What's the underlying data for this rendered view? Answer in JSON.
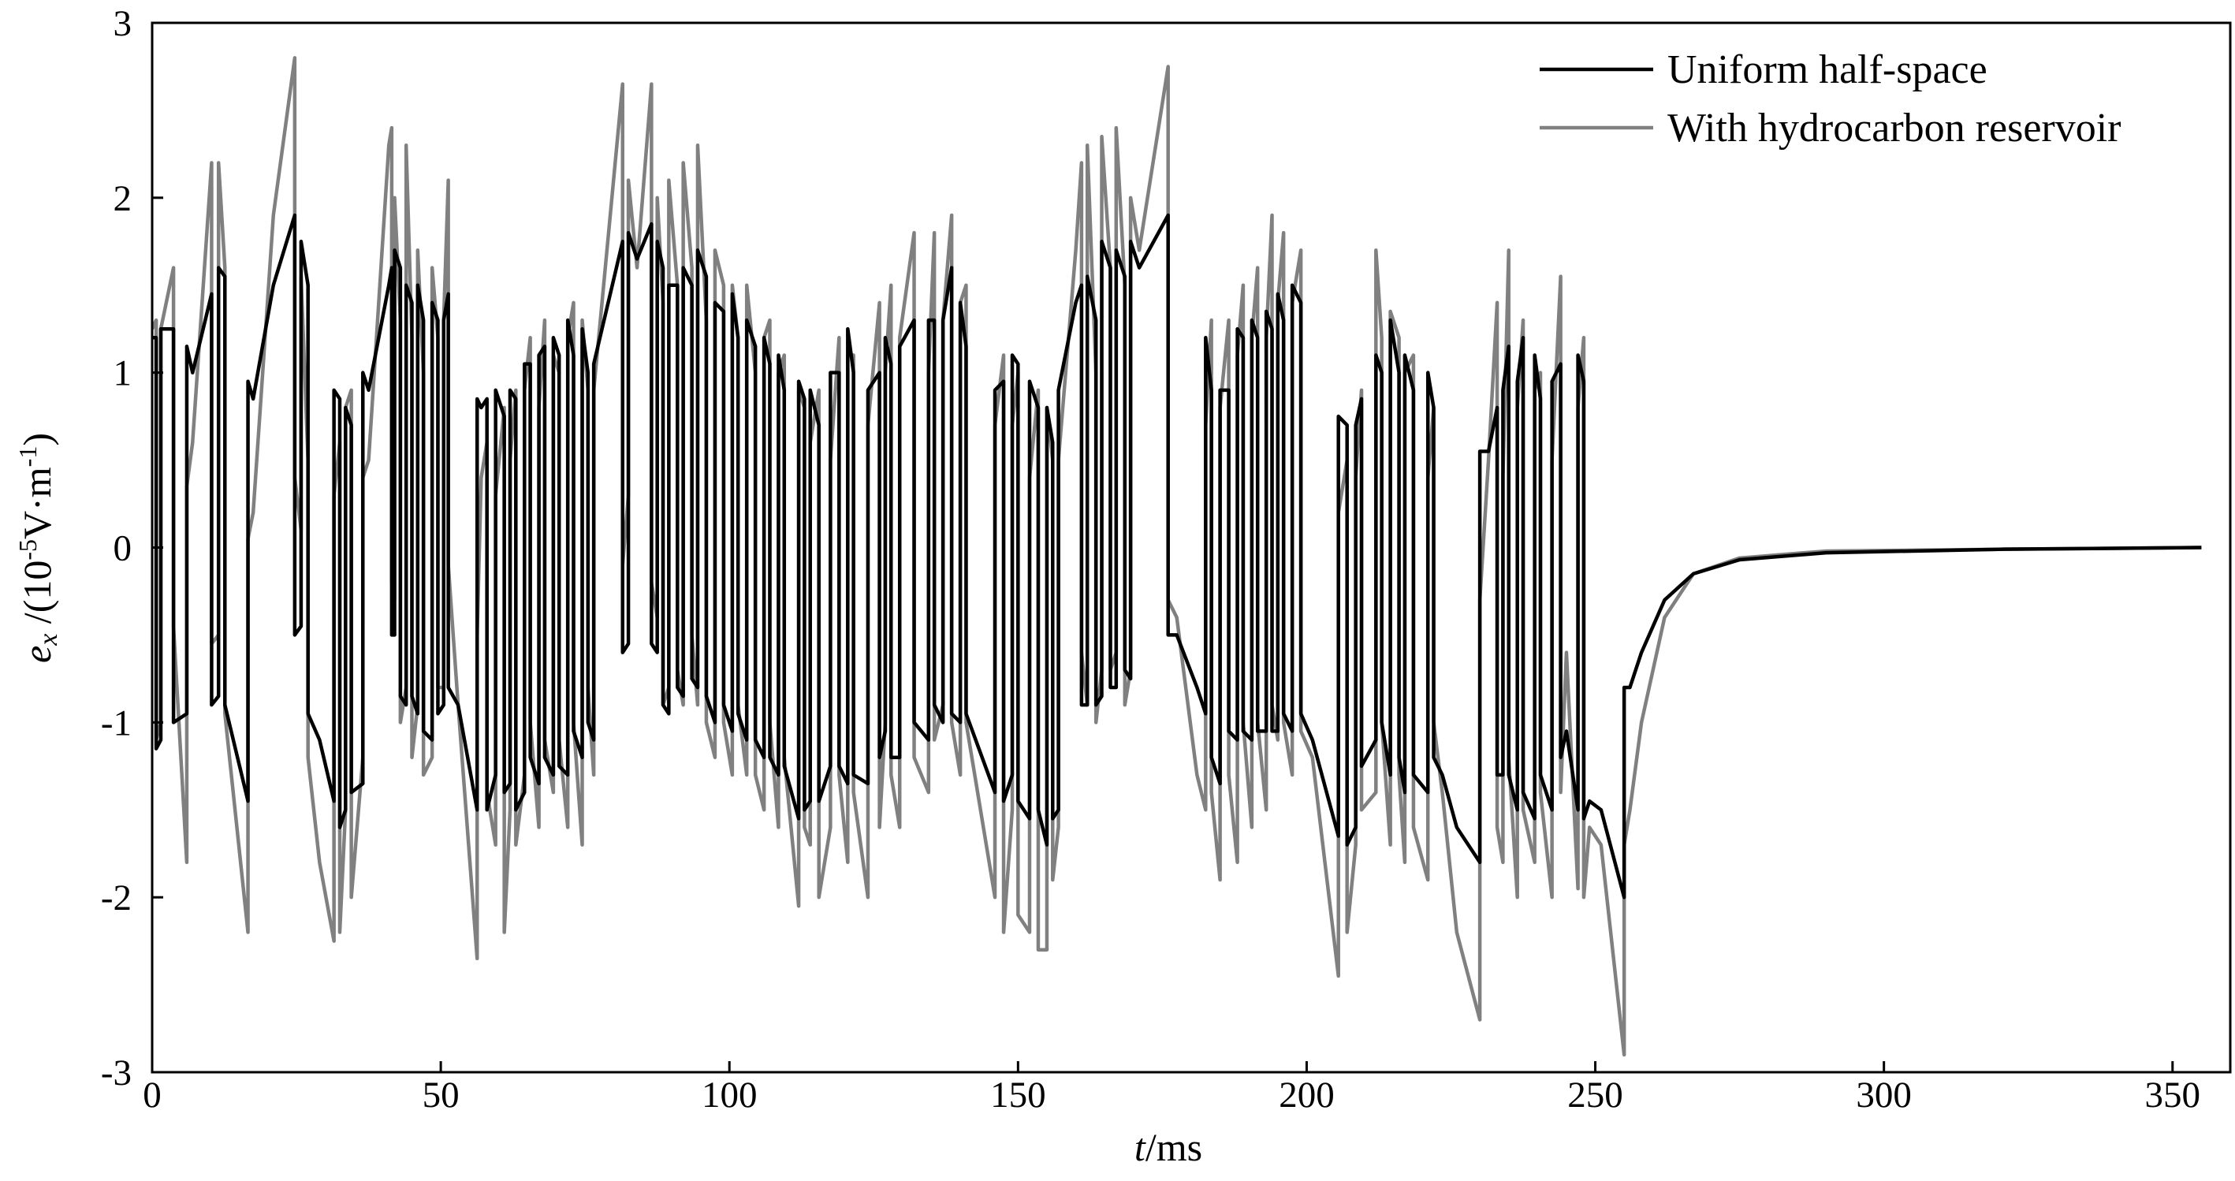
{
  "chart_data": {
    "type": "line",
    "x_label": {
      "symbol": "t",
      "unit": "/ms"
    },
    "y_label": {
      "symbol": "e",
      "subscript": "x",
      "prefix": " /(10",
      "exponent": "-5",
      "unit": "V·m",
      "unit_exponent": "-1",
      "suffix": ")"
    },
    "xlim": [
      0,
      360
    ],
    "ylim": [
      -3,
      3
    ],
    "xticks": [
      0,
      50,
      100,
      150,
      200,
      250,
      300,
      350
    ],
    "yticks": [
      -3,
      -2,
      -1,
      0,
      1,
      2,
      3
    ],
    "legend": "upper right",
    "x": [
      0,
      0.7,
      0.7,
      1.5,
      1.5,
      3.7,
      3.7,
      6,
      6,
      7,
      10.3,
      10.3,
      11.5,
      11.5,
      12.6,
      12.6,
      16.6,
      16.6,
      17.5,
      21,
      24.7,
      24.7,
      25.8,
      25.8,
      27,
      27,
      29,
      31.5,
      31.5,
      32.5,
      32.5,
      33.5,
      33.5,
      34.5,
      34.5,
      36.5,
      36.5,
      37.5,
      41,
      41.5,
      41.5,
      42,
      42,
      43,
      43,
      44,
      44,
      45,
      45,
      46,
      46,
      47,
      47,
      48.5,
      48.5,
      49.5,
      49.5,
      50.5,
      50.5,
      51.3,
      51.3,
      53,
      56.3,
      56.3,
      57,
      58,
      58,
      59.5,
      59.5,
      61,
      61,
      62,
      62,
      63,
      63,
      64.5,
      64.5,
      65.5,
      65.5,
      67,
      67,
      68,
      68,
      69.5,
      69.5,
      70.5,
      70.5,
      72,
      72,
      73,
      73,
      74.5,
      74.5,
      75.5,
      75.5,
      76.5,
      76.5,
      81.5,
      81.5,
      82.5,
      82.5,
      84,
      86.5,
      86.5,
      87.5,
      87.5,
      88.5,
      88.5,
      89.5,
      89.5,
      91,
      91,
      92,
      92,
      93.5,
      93.5,
      94.5,
      94.5,
      96,
      96,
      97.5,
      97.5,
      99,
      99,
      100.5,
      100.5,
      101.5,
      101.5,
      103,
      103,
      104.5,
      104.5,
      106,
      106,
      107,
      107,
      108.5,
      108.5,
      109.5,
      109.5,
      112,
      112,
      113,
      113,
      114,
      114,
      115.5,
      115.5,
      117.5,
      117.5,
      119,
      119,
      120.5,
      120.5,
      121.5,
      121.5,
      124,
      124,
      126,
      126,
      127,
      127,
      128,
      128,
      129.5,
      129.5,
      132,
      132,
      134.5,
      134.5,
      135.5,
      135.5,
      137,
      137,
      138.5,
      138.5,
      140,
      140,
      141,
      141,
      146,
      146,
      147.5,
      147.5,
      149,
      149,
      150,
      150,
      152,
      152,
      153.5,
      153.5,
      155,
      155,
      156,
      156,
      157,
      157,
      160,
      161,
      161,
      162,
      162,
      163.5,
      163.5,
      164.5,
      164.5,
      166,
      166,
      167,
      167,
      168.5,
      168.5,
      169.5,
      169.5,
      171,
      176,
      176,
      177.5,
      181,
      182.5,
      182.5,
      183.5,
      183.5,
      185,
      185,
      186.5,
      186.5,
      188,
      188,
      189,
      189,
      190.5,
      190.5,
      191.5,
      191.5,
      193,
      193,
      194,
      194,
      195,
      195,
      196,
      196,
      197.5,
      197.5,
      199,
      199,
      201,
      205.5,
      205.5,
      207,
      207,
      208.5,
      208.5,
      209.5,
      209.5,
      212,
      212,
      213,
      213,
      214.5,
      214.5,
      216,
      216,
      217,
      217,
      218.5,
      218.5,
      221,
      221,
      222,
      222,
      223.5,
      226,
      230,
      230,
      231.5,
      233,
      233,
      234,
      234,
      235,
      235,
      236.5,
      236.5,
      237.5,
      237.5,
      239.5,
      239.5,
      240.5,
      240.5,
      242.5,
      242.5,
      244,
      244,
      245,
      247,
      247,
      248,
      248,
      249,
      251,
      255,
      255,
      256,
      258,
      262,
      267,
      275,
      290,
      320,
      355
    ],
    "series": [
      {
        "name": "Uniform half-space",
        "color": "#000000",
        "width": 4.5,
        "values": [
          1.2,
          1.2,
          -1.15,
          -1.1,
          1.25,
          1.25,
          -1.0,
          -0.95,
          1.15,
          1.0,
          1.45,
          -0.9,
          -0.85,
          1.6,
          1.55,
          -0.9,
          -1.45,
          0.95,
          0.85,
          1.5,
          1.9,
          -0.5,
          -0.45,
          1.75,
          1.5,
          -0.95,
          -1.1,
          -1.45,
          0.9,
          0.85,
          -1.6,
          -1.5,
          0.8,
          0.7,
          -1.4,
          -1.35,
          1.0,
          0.9,
          1.5,
          1.6,
          -0.5,
          -0.5,
          1.7,
          1.6,
          -0.85,
          -0.9,
          1.5,
          1.4,
          -0.85,
          -0.95,
          1.5,
          1.3,
          -1.05,
          -1.1,
          1.4,
          1.3,
          -0.95,
          -0.9,
          1.3,
          1.45,
          -0.8,
          -0.9,
          -1.5,
          0.85,
          0.8,
          0.85,
          -1.5,
          -1.3,
          0.9,
          0.75,
          -1.4,
          -1.35,
          0.9,
          0.85,
          -1.5,
          -1.4,
          1.05,
          1.05,
          -1.2,
          -1.35,
          1.1,
          1.15,
          -1.2,
          -1.3,
          1.2,
          1.1,
          -1.25,
          -1.3,
          1.3,
          1.1,
          -1.05,
          -1.2,
          1.25,
          1.0,
          -1.0,
          -1.1,
          1.05,
          1.75,
          -0.6,
          -0.55,
          1.8,
          1.65,
          1.85,
          -0.55,
          -0.6,
          1.75,
          1.6,
          -0.9,
          -0.95,
          1.5,
          1.5,
          -0.8,
          -0.85,
          1.6,
          1.5,
          -0.75,
          -0.8,
          1.7,
          1.55,
          -0.85,
          -1.0,
          1.4,
          1.35,
          -0.9,
          -1.05,
          1.45,
          1.2,
          -0.95,
          -1.1,
          1.3,
          1.15,
          -1.1,
          -1.2,
          1.2,
          1.05,
          -1.2,
          -1.3,
          1.1,
          0.9,
          -1.25,
          -1.55,
          0.95,
          0.85,
          -1.5,
          -1.45,
          0.9,
          0.7,
          -1.45,
          -1.25,
          1.0,
          1.0,
          -1.25,
          -1.35,
          1.25,
          1.0,
          -1.3,
          -1.35,
          0.9,
          1.0,
          -1.2,
          -1.05,
          1.2,
          1.05,
          -1.2,
          -1.2,
          1.15,
          1.3,
          -1.0,
          -1.1,
          1.3,
          1.3,
          -0.9,
          -1.0,
          1.3,
          1.6,
          -0.95,
          -1.0,
          1.4,
          1.15,
          -0.95,
          -1.4,
          0.9,
          0.95,
          -1.45,
          -1.3,
          1.1,
          1.05,
          -1.45,
          -1.55,
          0.95,
          0.8,
          -1.5,
          -1.7,
          0.8,
          0.6,
          -1.55,
          -1.5,
          0.9,
          1.4,
          1.5,
          -0.9,
          -0.9,
          1.55,
          1.3,
          -0.9,
          -0.85,
          1.75,
          1.6,
          -0.8,
          -0.8,
          1.7,
          1.55,
          -0.7,
          -0.75,
          1.75,
          1.6,
          1.9,
          -0.5,
          -0.5,
          -0.8,
          -0.95,
          1.2,
          0.9,
          -1.2,
          -1.35,
          0.9,
          0.9,
          -1.05,
          -1.1,
          1.25,
          1.2,
          -1.05,
          -1.1,
          1.3,
          1.2,
          -1.05,
          -1.05,
          1.35,
          1.25,
          -1.05,
          -1.05,
          1.45,
          1.3,
          -0.95,
          -1.05,
          1.5,
          1.4,
          -0.95,
          -1.1,
          -1.65,
          0.75,
          0.7,
          -1.7,
          -1.6,
          0.7,
          0.85,
          -1.25,
          -1.1,
          1.1,
          1.0,
          -1.0,
          -1.3,
          1.3,
          1.0,
          -1.2,
          -1.4,
          1.1,
          0.9,
          -1.3,
          -1.4,
          1.0,
          0.8,
          -1.2,
          -1.3,
          -1.6,
          -1.8,
          0.55,
          0.55,
          0.8,
          -1.3,
          -1.3,
          0.9,
          1.15,
          -1.3,
          -1.5,
          0.95,
          1.2,
          -1.4,
          -1.55,
          1.1,
          0.85,
          -1.3,
          -1.5,
          0.95,
          1.05,
          -1.2,
          -1.05,
          -1.5,
          1.1,
          0.95,
          -1.55,
          -1.45,
          -1.5,
          -2.0,
          -0.8,
          -0.8,
          -0.6,
          -0.3,
          -0.15,
          -0.07,
          -0.03,
          -0.01,
          0
        ]
      },
      {
        "name": "With hydrocarbon reservoir",
        "color": "#808080",
        "width": 4.5,
        "values": [
          1.25,
          1.3,
          -1.1,
          -1.0,
          1.25,
          1.6,
          -0.45,
          -1.8,
          0.35,
          0.6,
          2.2,
          -0.55,
          -0.5,
          2.2,
          1.6,
          -0.95,
          -2.2,
          0.05,
          0.2,
          1.9,
          2.8,
          0.4,
          0.1,
          1.55,
          0.5,
          -1.2,
          -1.8,
          -2.25,
          0.3,
          0.6,
          -2.2,
          -1.5,
          0.8,
          0.9,
          -2.0,
          -1.2,
          0.4,
          0.5,
          2.3,
          2.4,
          -0.2,
          -0.3,
          2.0,
          1.3,
          -1.0,
          -0.8,
          2.3,
          1.2,
          -1.2,
          -0.9,
          1.7,
          1.0,
          -1.3,
          -1.2,
          1.6,
          1.2,
          -0.8,
          -0.8,
          1.3,
          2.1,
          -0.1,
          -0.9,
          -2.35,
          -0.5,
          0.4,
          0.6,
          -1.4,
          -1.7,
          0.3,
          0.8,
          -2.2,
          -1.5,
          0.5,
          0.9,
          -1.7,
          -1.3,
          0.9,
          1.2,
          -1.0,
          -1.6,
          0.8,
          1.3,
          -1.1,
          -1.4,
          1.1,
          1.0,
          -1.1,
          -1.6,
          1.2,
          1.4,
          -1.0,
          -1.7,
          1.3,
          0.9,
          -0.8,
          -1.3,
          0.9,
          2.65,
          -0.1,
          0.3,
          2.1,
          1.6,
          2.65,
          -0.2,
          -0.4,
          2.0,
          1.4,
          -0.9,
          -0.8,
          2.1,
          1.5,
          -0.7,
          -0.9,
          2.2,
          1.6,
          -0.5,
          -0.9,
          2.3,
          1.3,
          -1.0,
          -1.2,
          1.7,
          1.5,
          -1.0,
          -1.3,
          1.5,
          1.2,
          -0.9,
          -1.3,
          1.5,
          1.0,
          -1.3,
          -1.5,
          1.2,
          1.3,
          -1.0,
          -1.6,
          1.0,
          1.1,
          -1.2,
          -2.05,
          0.9,
          0.8,
          -1.6,
          -1.7,
          0.6,
          0.9,
          -2.0,
          -1.6,
          0.5,
          1.2,
          -1.3,
          -1.8,
          1.1,
          1.1,
          -1.4,
          -2.0,
          0.7,
          1.4,
          -1.6,
          -1.0,
          1.0,
          1.5,
          -1.3,
          -1.6,
          1.2,
          1.8,
          -1.2,
          -1.4,
          1.0,
          1.8,
          -1.1,
          -0.9,
          1.3,
          1.9,
          -1.0,
          -1.3,
          1.4,
          1.5,
          -1.0,
          -2.0,
          0.7,
          1.1,
          -2.2,
          -1.5,
          0.7,
          1.0,
          -2.1,
          -2.2,
          0.4,
          0.9,
          -2.3,
          -2.3,
          0.8,
          0.5,
          -1.9,
          -1.6,
          0.5,
          1.7,
          2.2,
          -0.6,
          -0.9,
          2.3,
          1.0,
          -1.0,
          -0.7,
          2.35,
          1.6,
          -0.7,
          -0.6,
          2.4,
          1.5,
          -0.9,
          -0.7,
          2.0,
          1.7,
          2.75,
          -0.3,
          -0.4,
          -1.3,
          -1.5,
          0.7,
          1.3,
          -1.4,
          -1.9,
          0.8,
          1.3,
          -1.3,
          -1.8,
          1.1,
          1.5,
          -1.0,
          -1.6,
          1.2,
          1.6,
          -1.0,
          -1.5,
          1.2,
          1.9,
          -0.9,
          -1.1,
          1.4,
          1.8,
          -1.0,
          -1.3,
          1.4,
          1.7,
          -1.05,
          -1.2,
          -2.45,
          0.2,
          0.5,
          -2.2,
          -1.7,
          0.4,
          0.9,
          -1.5,
          -1.4,
          1.7,
          1.2,
          -1.0,
          -1.7,
          1.35,
          1.2,
          -1.3,
          -1.8,
          1.0,
          1.1,
          -1.6,
          -1.9,
          0.4,
          0.8,
          -1.0,
          -1.4,
          -2.2,
          -2.7,
          -0.3,
          0.5,
          1.4,
          -1.6,
          -1.8,
          0.4,
          1.7,
          -1.2,
          -2.0,
          0.8,
          1.3,
          -1.5,
          -1.8,
          0.9,
          1.0,
          -1.4,
          -2.0,
          0.5,
          1.55,
          -1.4,
          -0.6,
          -1.95,
          0.8,
          1.2,
          -2.0,
          -1.6,
          -1.7,
          -2.9,
          -1.7,
          -1.5,
          -1.0,
          -0.4,
          -0.15,
          -0.06,
          -0.02,
          -0.01,
          0
        ]
      }
    ]
  }
}
